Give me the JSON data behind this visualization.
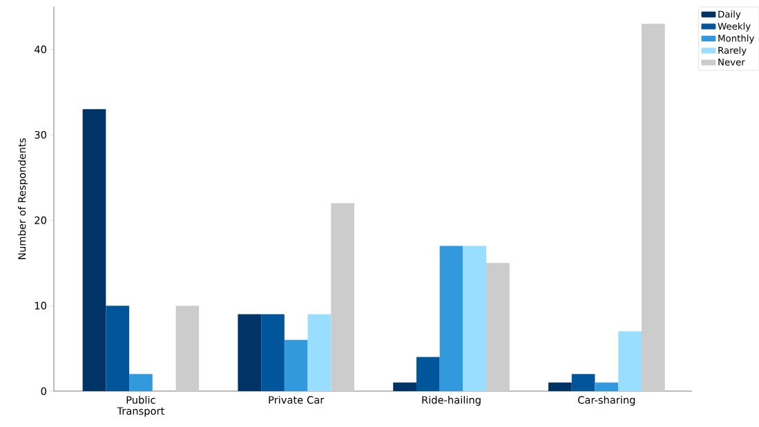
{
  "chart_data": {
    "type": "bar",
    "ylabel": "Number of Respondents",
    "categories": [
      "Public Transport",
      "Private Car",
      "Ride-hailing",
      "Car-sharing"
    ],
    "series": [
      {
        "name": "Daily",
        "color": "#003366",
        "values": [
          33,
          9,
          1,
          1
        ]
      },
      {
        "name": "Weekly",
        "color": "#00559b",
        "values": [
          10,
          9,
          4,
          2
        ]
      },
      {
        "name": "Monthly",
        "color": "#3399dd",
        "values": [
          2,
          6,
          17,
          1
        ]
      },
      {
        "name": "Rarely",
        "color": "#99ddff",
        "values": [
          0,
          9,
          17,
          7
        ]
      },
      {
        "name": "Never",
        "color": "#cccccc",
        "values": [
          10,
          22,
          15,
          43
        ]
      }
    ],
    "ylim": [
      0,
      45
    ],
    "yticks": [
      0,
      10,
      20,
      30,
      40
    ],
    "legend": "top right"
  }
}
